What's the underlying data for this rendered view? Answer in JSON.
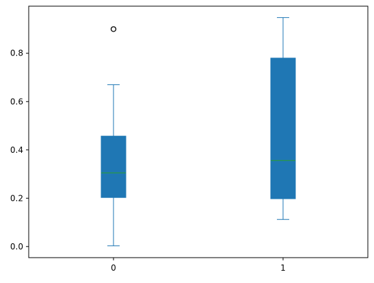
{
  "chart_data": {
    "type": "box",
    "categories": [
      "0",
      "1"
    ],
    "ylim": [
      -0.046,
      0.995
    ],
    "yticks": [
      "0.0",
      "0.2",
      "0.4",
      "0.6",
      "0.8"
    ],
    "ytick_values": [
      0.0,
      0.2,
      0.4,
      0.6,
      0.8
    ],
    "boxes": [
      {
        "category": "0",
        "whisker_low": 0.003,
        "q1": 0.203,
        "median": 0.305,
        "q3": 0.457,
        "whisker_high": 0.67,
        "outliers": [
          0.9
        ]
      },
      {
        "category": "1",
        "whisker_low": 0.112,
        "q1": 0.198,
        "median": 0.356,
        "q3": 0.78,
        "whisker_high": 0.948,
        "outliers": []
      }
    ],
    "box_color": "#1f77b4",
    "median_color": "#2ca02c",
    "grid": false,
    "legend": "none"
  }
}
